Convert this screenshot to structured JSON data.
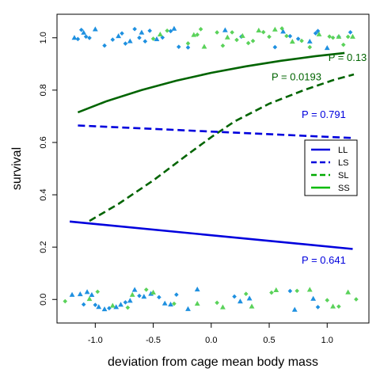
{
  "chart_data": {
    "type": "scatter",
    "xlabel": "deviation from cage mean body mass",
    "ylabel": "survival",
    "xlim": [
      -1.33,
      1.36
    ],
    "ylim": [
      -0.09,
      1.09
    ],
    "x_ticks": [
      -1.0,
      -0.5,
      0.0,
      0.5,
      1.0
    ],
    "x_tick_labels": [
      "-1.0",
      "-0.5",
      "0.0",
      "0.5",
      "1.0"
    ],
    "y_ticks": [
      0.0,
      0.2,
      0.4,
      0.6,
      0.8,
      1.0
    ],
    "y_tick_labels": [
      "0.0",
      "0.2",
      "0.4",
      "0.6",
      "0.8",
      "1.0"
    ],
    "legend": {
      "position": "right",
      "entries": [
        {
          "label": "LL",
          "color": "#0000dd",
          "dash": "solid"
        },
        {
          "label": "LS",
          "color": "#0000dd",
          "dash": "dashed"
        },
        {
          "label": "SL",
          "color": "#00aa00",
          "dash": "dashed"
        },
        {
          "label": "SS",
          "color": "#00bb00",
          "dash": "solid"
        }
      ]
    },
    "series": [
      {
        "name": "SS",
        "color": "#006400",
        "dash": "solid",
        "x": [
          -1.15,
          -0.9,
          -0.6,
          -0.3,
          0.0,
          0.3,
          0.6,
          0.9,
          1.15
        ],
        "y": [
          0.715,
          0.758,
          0.8,
          0.836,
          0.866,
          0.891,
          0.912,
          0.93,
          0.942
        ]
      },
      {
        "name": "SL",
        "color": "#006400",
        "dash": "dashed",
        "x": [
          -1.05,
          -0.8,
          -0.5,
          -0.2,
          0.0,
          0.2,
          0.5,
          0.8,
          1.05,
          1.23
        ],
        "y": [
          0.3,
          0.365,
          0.455,
          0.555,
          0.62,
          0.68,
          0.748,
          0.8,
          0.838,
          0.86
        ]
      },
      {
        "name": "LS",
        "color": "#0000dd",
        "dash": "dashed",
        "x": [
          -1.15,
          1.22
        ],
        "y": [
          0.665,
          0.617
        ]
      },
      {
        "name": "LL",
        "color": "#0000dd",
        "dash": "solid",
        "x": [
          -1.22,
          1.22
        ],
        "y": [
          0.298,
          0.193
        ]
      }
    ],
    "annotations": [
      {
        "text": "P = 0.13",
        "x": 1.01,
        "y": 0.912,
        "color": "#006400"
      },
      {
        "text": "P = 0.0193",
        "x": 0.52,
        "y": 0.838,
        "color": "#006400"
      },
      {
        "text": "P = 0.791",
        "x": 0.78,
        "y": 0.693,
        "color": "#0000dd"
      },
      {
        "text": "P = 0.641",
        "x": 0.78,
        "y": 0.137,
        "color": "#0000dd"
      }
    ],
    "points": {
      "blue": "#1e90e0",
      "green": "#5ad25a",
      "survived_x_blue": [
        -1.18,
        -1.15,
        -1.12,
        -1.1,
        -1.08,
        -1.05,
        -1.0,
        -0.92,
        -0.85,
        -0.8,
        -0.77,
        -0.74,
        -0.7,
        -0.66,
        -0.62,
        -0.6,
        -0.57,
        -0.53,
        -0.47,
        -0.42,
        -0.35,
        -0.32,
        -0.28,
        -0.2,
        0.12,
        0.26,
        0.55,
        0.62,
        0.68,
        0.75,
        0.85,
        0.9,
        0.92,
        1.0,
        1.1,
        1.2
      ],
      "survived_x_green": [
        -0.5,
        -0.44,
        -0.38,
        -0.2,
        -0.15,
        -0.12,
        -0.09,
        -0.06,
        0.05,
        0.1,
        0.14,
        0.18,
        0.22,
        0.27,
        0.32,
        0.36,
        0.41,
        0.45,
        0.5,
        0.55,
        0.61,
        0.65,
        0.7,
        0.78,
        0.85,
        0.93,
        1.02,
        1.05,
        1.1,
        1.14,
        1.18,
        1.22
      ],
      "died_x_blue": [
        -1.2,
        -1.13,
        -1.1,
        -1.07,
        -1.03,
        -1.0,
        -0.97,
        -0.92,
        -0.88,
        -0.82,
        -0.78,
        -0.74,
        -0.7,
        -0.66,
        -0.62,
        -0.58,
        -0.52,
        -0.45,
        -0.4,
        -0.35,
        -0.3,
        -0.2,
        -0.12,
        0.2,
        0.25,
        0.33,
        0.68,
        0.72,
        0.88,
        0.92
      ],
      "died_x_green": [
        -1.26,
        -1.05,
        -0.98,
        -0.85,
        -0.72,
        -0.68,
        -0.56,
        -0.5,
        -0.32,
        -0.12,
        0.05,
        0.1,
        0.3,
        0.35,
        0.52,
        0.56,
        0.74,
        0.85,
        1.0,
        1.05,
        1.1,
        1.18,
        1.25
      ]
    }
  }
}
